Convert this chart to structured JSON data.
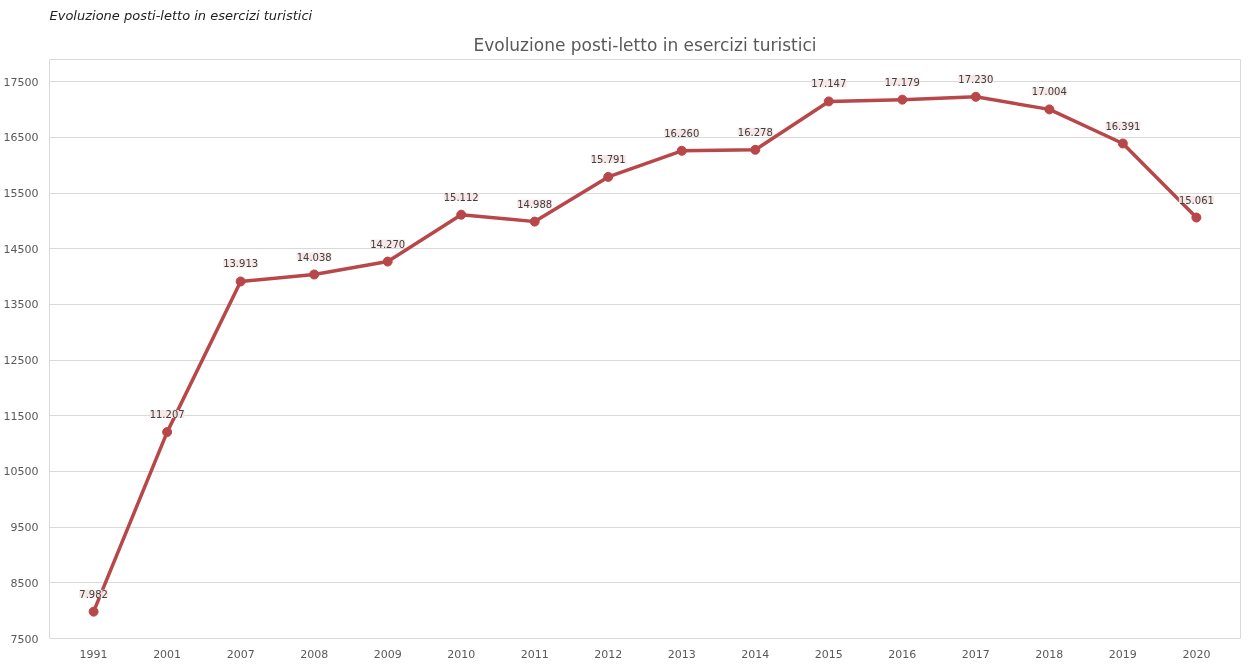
{
  "chart_data": {
    "type": "line",
    "title": "Evoluzione posti-letto in esercizi turistici",
    "annotations": [
      "Evoluzione posti-letto in esercizi turistici"
    ],
    "categories": [
      "1991",
      "2001",
      "2007",
      "2008",
      "2009",
      "2010",
      "2011",
      "2012",
      "2013",
      "2014",
      "2015",
      "2016",
      "2017",
      "2018",
      "2019",
      "2020"
    ],
    "series": [
      {
        "color": "#b8474a",
        "values": [
          7982,
          11207,
          13913,
          14038,
          14270,
          15112,
          14988,
          15791,
          16260,
          16278,
          17147,
          17179,
          17230,
          17004,
          16391,
          15061
        ],
        "value_labels": [
          "7.982",
          "11.207",
          "13.913",
          "14.038",
          "14.270",
          "15.112",
          "14.988",
          "15.791",
          "16.260",
          "16.278",
          "17.147",
          "17.179",
          "17.230",
          "17.004",
          "16.391",
          "15.061"
        ]
      }
    ],
    "ylim": [
      7500,
      17900
    ],
    "yticks": [
      7500,
      8500,
      9500,
      10500,
      11500,
      12500,
      13500,
      14500,
      15500,
      16500,
      17500
    ],
    "grid": "y",
    "marker": "circle",
    "line_style": "solid"
  }
}
